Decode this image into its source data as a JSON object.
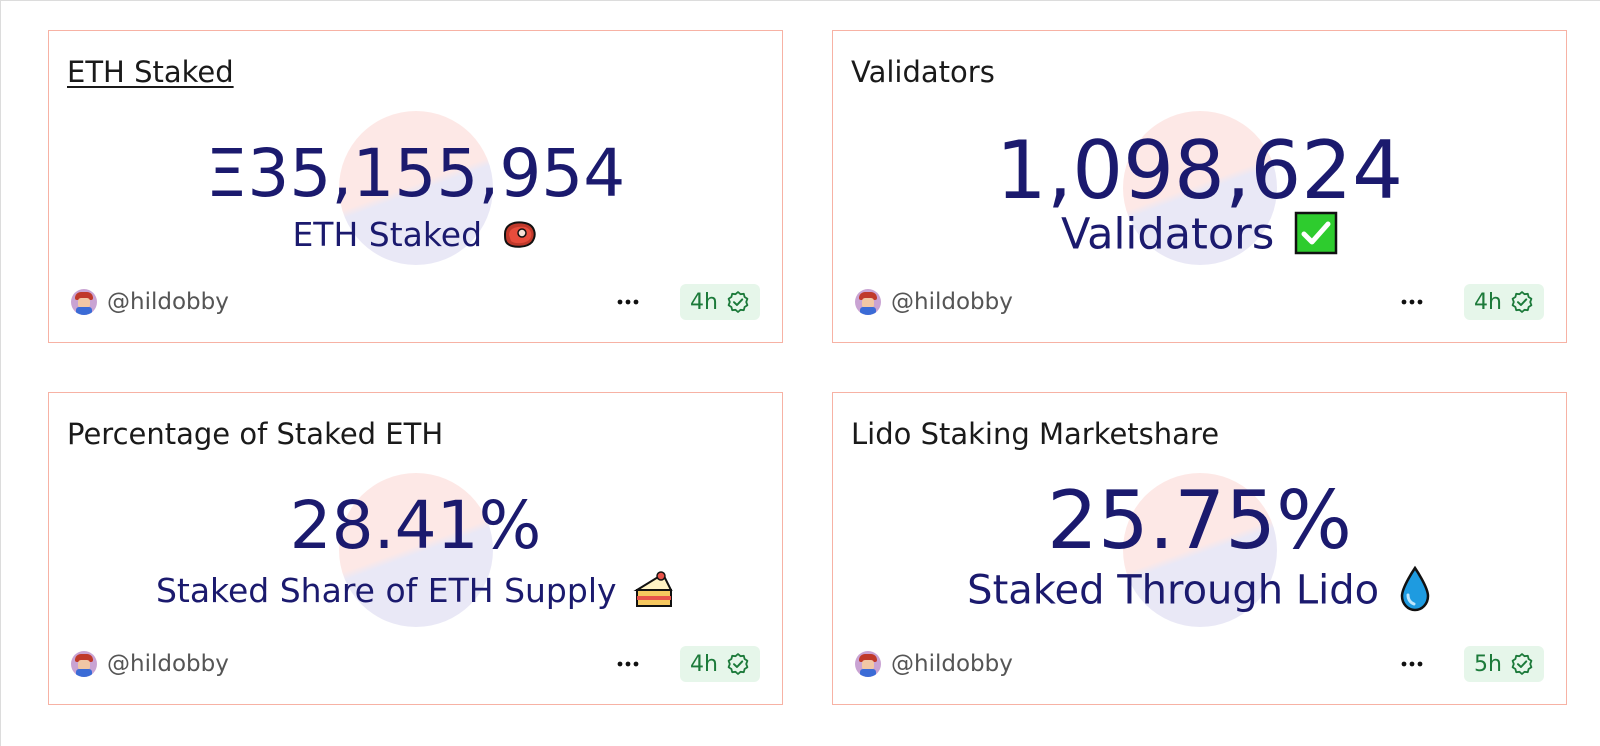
{
  "cards": [
    {
      "title": "ETH Staked",
      "value": "Ξ35,155,954",
      "label": "ETH Staked",
      "emoji_icon": "meat-icon",
      "author": "@hildobby",
      "age": "4h"
    },
    {
      "title": "Validators",
      "value": "1,098,624",
      "label": "Validators",
      "emoji_icon": "check-mark-button-icon",
      "author": "@hildobby",
      "age": "4h"
    },
    {
      "title": "Percentage of Staked ETH",
      "value": "28.41%",
      "label": "Staked Share of ETH Supply",
      "emoji_icon": "cake-slice-icon",
      "author": "@hildobby",
      "age": "4h"
    },
    {
      "title": "Lido Staking Marketshare",
      "value": "25.75%",
      "label": "Staked Through Lido",
      "emoji_icon": "droplet-icon",
      "author": "@hildobby",
      "age": "5h"
    }
  ],
  "colors": {
    "value_text": "#1b1a6e",
    "card_border": "#f7b2a4",
    "badge_bg": "#e6f6ea",
    "badge_text": "#1c7a3a"
  }
}
